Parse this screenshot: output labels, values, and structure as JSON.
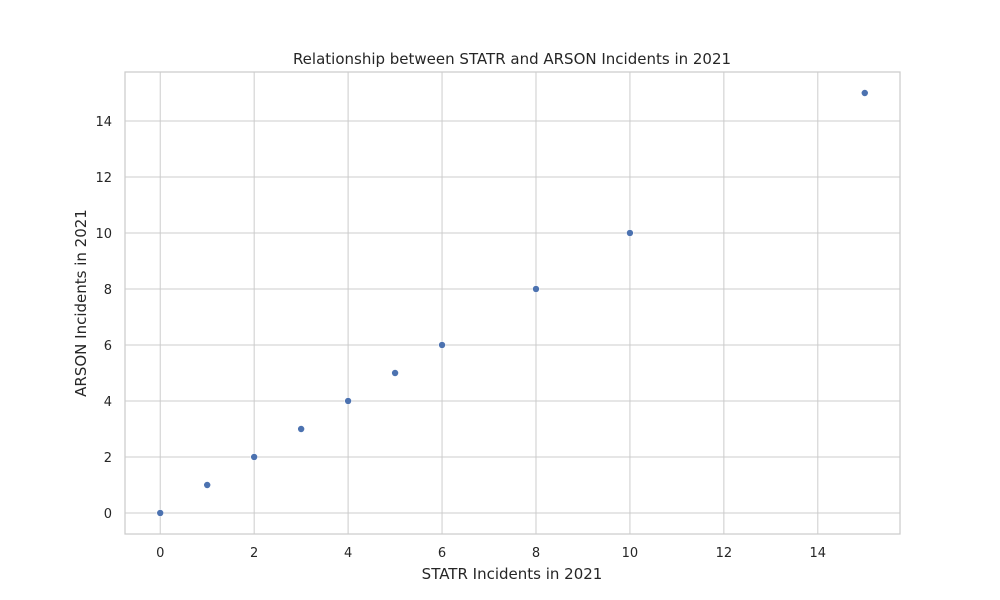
{
  "chart_data": {
    "type": "scatter",
    "title": "Relationship between STATR and ARSON Incidents in 2021",
    "xlabel": "STATR Incidents in 2021",
    "ylabel": "ARSON Incidents in 2021",
    "xlim": [
      -0.75,
      15.75
    ],
    "ylim": [
      -0.75,
      15.75
    ],
    "xticks": [
      0,
      2,
      4,
      6,
      8,
      10,
      12,
      14
    ],
    "yticks": [
      0,
      2,
      4,
      6,
      8,
      10,
      12,
      14
    ],
    "grid": true,
    "points": [
      {
        "x": 0,
        "y": 0
      },
      {
        "x": 1,
        "y": 1
      },
      {
        "x": 2,
        "y": 2
      },
      {
        "x": 3,
        "y": 3
      },
      {
        "x": 4,
        "y": 4
      },
      {
        "x": 5,
        "y": 5
      },
      {
        "x": 6,
        "y": 6
      },
      {
        "x": 8,
        "y": 8
      },
      {
        "x": 10,
        "y": 10
      },
      {
        "x": 15,
        "y": 15
      }
    ],
    "marker_color": "#4c72b0",
    "grid_color": "#cccccc",
    "text_color": "#262626"
  }
}
